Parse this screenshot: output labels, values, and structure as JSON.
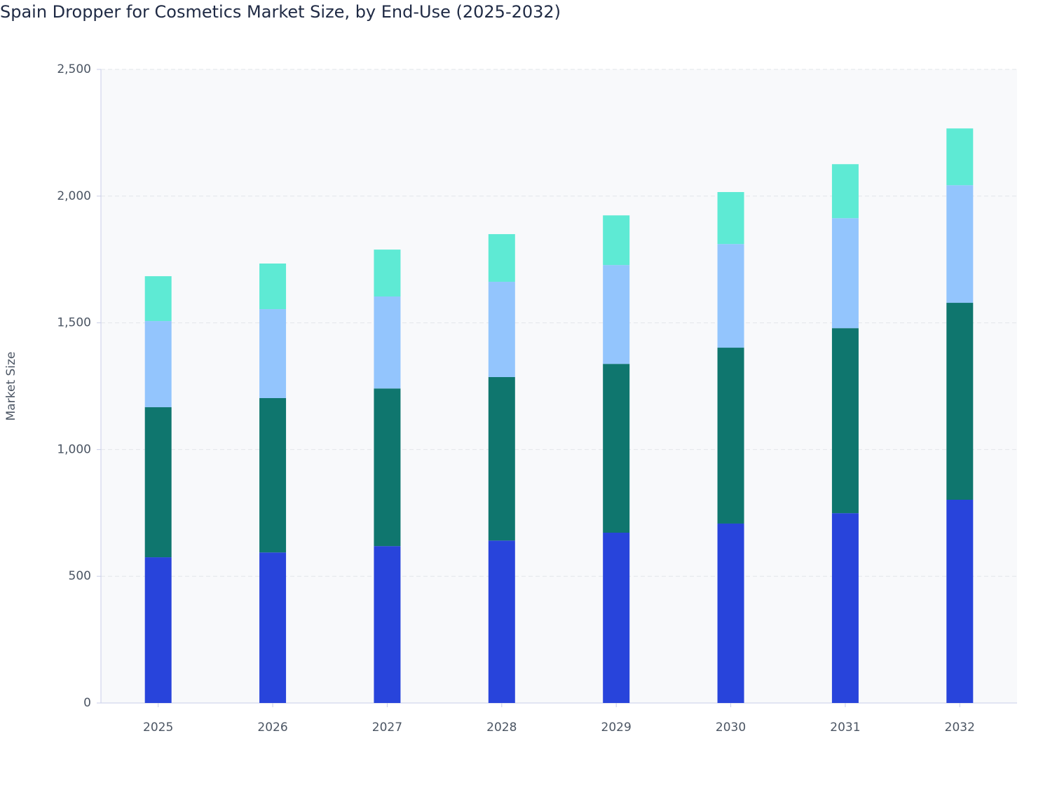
{
  "chart_data": {
    "type": "stacked_bar",
    "title": "Spain Dropper for Cosmetics Market Size, by End-Use (2025-2032)",
    "y_label": "Market Size",
    "categories": [
      "2025",
      "2026",
      "2027",
      "2028",
      "2029",
      "2030",
      "2031",
      "2032"
    ],
    "series": [
      {
        "color": "#2844db",
        "values": [
          575,
          594,
          619,
          641,
          672,
          708,
          749,
          802
        ]
      },
      {
        "color": "#0f766e",
        "values": [
          592,
          609,
          622,
          645,
          666,
          694,
          730,
          777
        ]
      },
      {
        "color": "#93c5fd",
        "values": [
          340,
          351,
          363,
          376,
          390,
          409,
          434,
          464
        ]
      },
      {
        "color": "#5eead4",
        "values": [
          177,
          180,
          185,
          188,
          196,
          205,
          213,
          224
        ]
      }
    ],
    "ylim": [
      0,
      2500
    ],
    "yticks": [
      0,
      500,
      {
        "value": 1000,
        "label": "1,000"
      },
      {
        "value": 1500,
        "label": "1,500"
      },
      {
        "value": 2000,
        "label": "2,000"
      },
      {
        "value": 2500,
        "label": "2,500"
      }
    ],
    "grid": true
  }
}
